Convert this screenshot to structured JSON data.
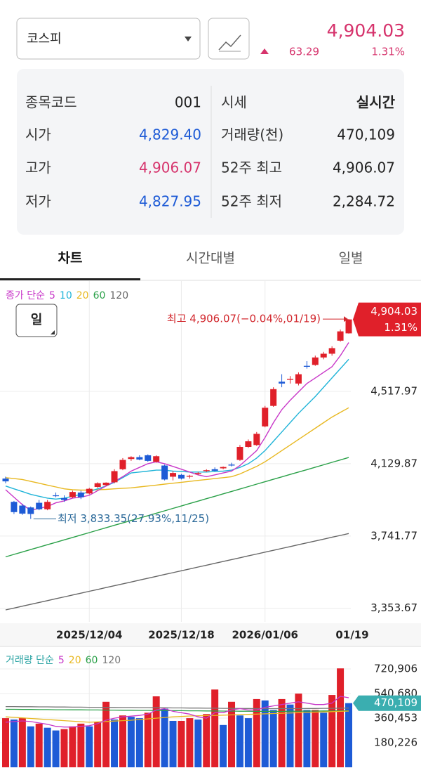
{
  "header": {
    "selector": "코스피",
    "price": "4,904.03",
    "change": "63.29",
    "change_rate": "1.31%"
  },
  "info": {
    "rows": [
      [
        "종목코드",
        "001",
        "시세",
        "실시간"
      ],
      [
        "시가",
        "4,829.40",
        "거래량(천)",
        "470,109"
      ],
      [
        "고가",
        "4,906.07",
        "52주 최고",
        "4,906.07"
      ],
      [
        "저가",
        "4,827.95",
        "52주 최저",
        "2,284.72"
      ]
    ]
  },
  "tabs": [
    "차트",
    "시간대별",
    "일별"
  ],
  "chart_data": [
    {
      "type": "candlestick",
      "legend_title": "종가 단순",
      "legend_title_color": "#c837c8",
      "period": "일",
      "up_color": "#e0202a",
      "down_color": "#1e5bd6",
      "grid": true,
      "categories": [
        null,
        null,
        null,
        null,
        null,
        null,
        null,
        null,
        null,
        null,
        "2025/12/04",
        null,
        null,
        null,
        null,
        null,
        null,
        null,
        null,
        null,
        null,
        "2025/12/18",
        null,
        null,
        null,
        null,
        null,
        null,
        null,
        null,
        null,
        "2026/01/06",
        null,
        null,
        null,
        null,
        null,
        null,
        null,
        null,
        null,
        "01/19"
      ],
      "open": [
        4050,
        3925,
        3905,
        3895,
        3920,
        3885,
        3960,
        3945,
        3950,
        3975,
        3970,
        4005,
        4015,
        4030,
        4100,
        4155,
        4165,
        4175,
        4140,
        4120,
        4060,
        4070,
        4060,
        4075,
        4090,
        4100,
        4105,
        4125,
        4150,
        4220,
        4230,
        4330,
        4440,
        4570,
        4580,
        4560,
        4655,
        4660,
        4700,
        4720,
        4790,
        4829.4
      ],
      "high": [
        4060,
        3930,
        3915,
        3900,
        3935,
        3935,
        3975,
        3960,
        3985,
        3985,
        4000,
        4030,
        4030,
        4100,
        4160,
        4170,
        4175,
        4180,
        4175,
        4125,
        4090,
        4075,
        4070,
        4085,
        4100,
        4110,
        4115,
        4135,
        4230,
        4260,
        4300,
        4440,
        4540,
        4610,
        4600,
        4620,
        4680,
        4710,
        4730,
        4760,
        4850,
        4906.07
      ],
      "low": [
        4025,
        3860,
        3855,
        3833.35,
        3880,
        3880,
        3950,
        3925,
        3945,
        3940,
        3965,
        4000,
        4010,
        4025,
        4095,
        4145,
        4148,
        4140,
        4135,
        4040,
        4040,
        4045,
        4050,
        4068,
        4085,
        4088,
        4100,
        4115,
        4145,
        4215,
        4225,
        4325,
        4435,
        4540,
        4560,
        4550,
        4640,
        4655,
        4690,
        4710,
        4785,
        4827.95
      ],
      "close": [
        4035,
        3870,
        3862,
        3860,
        3885,
        3925,
        3958,
        3935,
        3978,
        3950,
        3995,
        4025,
        4028,
        4090,
        4150,
        4165,
        4152,
        4145,
        4170,
        4045,
        4080,
        4050,
        4065,
        4080,
        4095,
        4092,
        4112,
        4120,
        4220,
        4250,
        4290,
        4430,
        4530,
        4560,
        4585,
        4610,
        4650,
        4700,
        4720,
        4750,
        4840,
        4904.03
      ],
      "series": [
        {
          "name": "5",
          "color": "#c837c8",
          "values": [
            3990,
            3950,
            3910,
            3880,
            3890,
            3900,
            3920,
            3930,
            3945,
            3950,
            3960,
            3985,
            4010,
            4035,
            4060,
            4090,
            4110,
            4130,
            4140,
            4130,
            4115,
            4100,
            4085,
            4070,
            4060,
            4070,
            4080,
            4090,
            4120,
            4160,
            4200,
            4270,
            4350,
            4420,
            4470,
            4515,
            4560,
            4590,
            4620,
            4650,
            4710,
            4780
          ]
        },
        {
          "name": "10",
          "color": "#20b4d8",
          "values": [
            4010,
            3995,
            3980,
            3965,
            3955,
            3945,
            3940,
            3945,
            3955,
            3965,
            3980,
            3995,
            4010,
            4030,
            4055,
            4080,
            4085,
            4090,
            4095,
            4095,
            4090,
            4088,
            4085,
            4085,
            4085,
            4088,
            4090,
            4095,
            4110,
            4130,
            4160,
            4200,
            4250,
            4300,
            4350,
            4400,
            4445,
            4490,
            4540,
            4590,
            4640,
            4690
          ]
        },
        {
          "name": "20",
          "color": "#e8b820",
          "values": [
            4055,
            4050,
            4045,
            4035,
            4025,
            4015,
            4005,
            3995,
            3990,
            3988,
            3988,
            3990,
            3992,
            3995,
            3998,
            4000,
            4005,
            4010,
            4015,
            4020,
            4025,
            4030,
            4035,
            4040,
            4045,
            4050,
            4055,
            4060,
            4075,
            4095,
            4115,
            4140,
            4170,
            4200,
            4230,
            4260,
            4290,
            4320,
            4350,
            4380,
            4405,
            4430
          ]
        },
        {
          "name": "60",
          "color": "#2aa048",
          "values": [
            3630,
            3643,
            3656,
            3669,
            3682,
            3695,
            3708,
            3721,
            3734,
            3747,
            3760,
            3773,
            3786,
            3799,
            3812,
            3825,
            3838,
            3851,
            3864,
            3877,
            3890,
            3903,
            3916,
            3929,
            3942,
            3955,
            3968,
            3981,
            3994,
            4007,
            4020,
            4033,
            4046,
            4059,
            4072,
            4085,
            4098,
            4111,
            4124,
            4137,
            4150,
            4163
          ]
        },
        {
          "name": "120",
          "color": "#666666",
          "values": [
            3345,
            3355,
            3365,
            3375,
            3385,
            3395,
            3405,
            3415,
            3425,
            3435,
            3445,
            3455,
            3465,
            3475,
            3485,
            3495,
            3505,
            3515,
            3525,
            3535,
            3545,
            3555,
            3565,
            3575,
            3585,
            3595,
            3605,
            3615,
            3625,
            3635,
            3645,
            3655,
            3665,
            3675,
            3685,
            3695,
            3705,
            3715,
            3725,
            3735,
            3745,
            3755
          ]
        }
      ],
      "ylim": [
        3281,
        5110
      ],
      "yticks": [
        {
          "value": 3353.67,
          "label": "3,353.67"
        },
        {
          "value": 3741.77,
          "label": "3,741.77"
        },
        {
          "value": 4129.87,
          "label": "4,129.87"
        },
        {
          "value": 4517.97,
          "label": "4,517.97"
        }
      ],
      "annotations": {
        "high": "최고 4,906.07(−0.04%,01/19)",
        "low": "최저 3,833.35(27.93%,11/25)"
      }
    },
    {
      "type": "bar",
      "legend_title": "거래량 단순",
      "legend_title_color": "#2aa3a3",
      "up_color": "#e0202a",
      "down_color": "#1e5bd6",
      "grid": true,
      "values": [
        360000,
        350000,
        360000,
        300000,
        320000,
        290000,
        270000,
        280000,
        300000,
        320000,
        300000,
        330000,
        480000,
        350000,
        380000,
        370000,
        360000,
        400000,
        520000,
        430000,
        340000,
        340000,
        360000,
        350000,
        390000,
        570000,
        310000,
        480000,
        380000,
        360000,
        500000,
        490000,
        420000,
        500000,
        460000,
        540000,
        420000,
        420000,
        400000,
        530000,
        725000,
        470109
      ],
      "series": [
        {
          "name": "5",
          "color": "#c837c8",
          "values": [
            330000,
            335000,
            340000,
            335000,
            325000,
            315000,
            300000,
            295000,
            295000,
            300000,
            305000,
            320000,
            345000,
            360000,
            370000,
            375000,
            380000,
            390000,
            420000,
            430000,
            410000,
            400000,
            390000,
            370000,
            360000,
            400000,
            400000,
            420000,
            430000,
            420000,
            420000,
            440000,
            450000,
            460000,
            470000,
            480000,
            470000,
            460000,
            460000,
            470000,
            520000,
            510000
          ]
        },
        {
          "name": "20",
          "color": "#e8b820",
          "values": [
            370000,
            366000,
            362000,
            358000,
            354000,
            350000,
            346000,
            342000,
            338000,
            334000,
            330000,
            333000,
            336000,
            339000,
            342000,
            345000,
            350000,
            355000,
            360000,
            365000,
            370000,
            373000,
            376000,
            378000,
            379000,
            380000,
            382000,
            384000,
            386000,
            388000,
            390000,
            392000,
            394000,
            396000,
            398000,
            400000,
            402000,
            404000,
            406000,
            408000,
            410000,
            412000
          ]
        },
        {
          "name": "60",
          "color": "#2aa048",
          "values": [
            425000,
            425000,
            424000,
            424000,
            423000,
            423000,
            422000,
            422000,
            421000,
            421000,
            420000,
            420000,
            419000,
            419000,
            418000,
            418000,
            417000,
            417000,
            416000,
            416000,
            415000,
            415000,
            414000,
            414000,
            413000,
            413000,
            412000,
            412000,
            411000,
            411000,
            410000,
            410000,
            410000,
            410000,
            411000,
            411000,
            412000,
            412000,
            413000,
            413000,
            414000,
            415000
          ]
        },
        {
          "name": "120",
          "color": "#777777",
          "values": [
            445000,
            445000,
            444000,
            444000,
            443000,
            443000,
            442000,
            442000,
            441000,
            441000,
            440000,
            440000,
            439000,
            439000,
            438000,
            438000,
            437000,
            437000,
            436000,
            436000,
            435000,
            435000,
            434000,
            434000,
            433000,
            433000,
            432000,
            432000,
            431000,
            431000,
            430000,
            430000,
            430000,
            430000,
            430000,
            430000,
            431000,
            431000,
            432000,
            432000,
            433000,
            434000
          ]
        }
      ],
      "ylim": [
        0,
        860000
      ],
      "yticks": [
        {
          "value": 180226,
          "label": "180,226"
        },
        {
          "value": 360453,
          "label": "360,453"
        },
        {
          "value": 540680,
          "label": "540,680"
        },
        {
          "value": 720906,
          "label": "720,906"
        }
      ]
    }
  ]
}
